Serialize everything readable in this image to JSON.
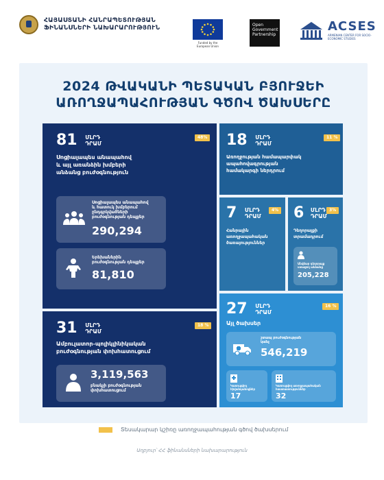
{
  "header": {
    "ministry_name_line1": "ՀԱՅԱՍՏԱՆԻ ՀԱՆՐԱՊԵՏՈՒԹՅԱՆ",
    "ministry_name_line2": "ՖԻՆԱՆՍՆԵՐԻ ՆԱԽԱՐԱՐՈՒԹՅՈՒՆ",
    "eu_caption": "Funded by the European Union",
    "ogp_text": "Open Government Partnership",
    "acses_name": "ACSES",
    "acses_sub": "ARMENIAN CENTER FOR SOCIO-ECONOMIC STUDIES"
  },
  "title_line1": "2024 ԹՎԱԿԱՆԻ ՊԵՏԱԿԱՆ ԲՅՈՒՋԵԻ",
  "title_line2": "ԱՌՈՂՋԱՊԱՀՈՒԹՅԱՆ ԳԾՈՎ ԾԱԽՍԵՐԸ",
  "unit_line1": "ՄԼՐԴ",
  "unit_line2": "ԴՐԱՄ",
  "blocks": {
    "social": {
      "amount": "81",
      "percent": "48%",
      "caption_line1": "Սոցիալապես անապահով",
      "caption_line2": "և այլ առանձին խմբերի",
      "caption_line3": "անձանց բուժօգնություն",
      "card1_line1": "Սոցիալապես անապահով",
      "card1_line2": "և հատուկ խմբերում",
      "card1_line3": "ընդգրկվածների",
      "card1_line4": "բուժօգնության դեպքեր",
      "card1_value": "290,294",
      "card2_line1": "Երեխաներին",
      "card2_line2": "բուժօգնության դեպքեր",
      "card2_value": "81,810"
    },
    "primary": {
      "amount": "31",
      "percent": "18 %",
      "caption_line1": "Ամբուլատոր-պոլիկլինիկական",
      "caption_line2": "բուժօգնության փոխհատուցում",
      "card_value": "3,119,563",
      "card_line1": "բնակչի բուժօգնության",
      "card_line2": "փոխհատուցում"
    },
    "insurance": {
      "amount": "18",
      "percent": "11 %",
      "caption_line1": "Առողջության համապարփակ",
      "caption_line2": "ապահովագրության",
      "caption_line3": "համակարգի ներդրում"
    },
    "public_health": {
      "amount": "7",
      "percent": "4%",
      "caption_line1": "Հանրային",
      "caption_line2": "առողջապահական",
      "caption_line3": "ծառայություններ"
    },
    "drugs": {
      "amount": "6",
      "percent": "3%",
      "caption_line1": "Դեղորայքի",
      "caption_line2": "տրամադրում",
      "card_line1": "Անվճար դեղորայք",
      "card_line2": "ստացող անձանց",
      "card_value": "205,228"
    },
    "other": {
      "amount": "27",
      "percent": "16 %",
      "caption": "Այլ ծախսեր",
      "card1_line1": "շտապ բուժօգնության",
      "card1_line2": "կանչ",
      "card1_value": "546,219",
      "card2_line1": "Կառուցվող",
      "card2_line2": "հիվանդանոցներ",
      "card2_value": "17",
      "card3_line1": "Կառուցվող առողջապահական",
      "card3_line2": "հաստատություններ",
      "card3_value": "32"
    }
  },
  "legend": "Տեսակարար կշիռը առողջապահության գծով ծախսերում",
  "source": "Աղբյուր՝ ՀՀ ֆինանսների նախարարություն",
  "colors": {
    "navy": "#14306a",
    "blue_mid": "#1f5f96",
    "blue": "#2a73a9",
    "blue_light": "#2d8fd3",
    "accent": "#f2c14b"
  }
}
